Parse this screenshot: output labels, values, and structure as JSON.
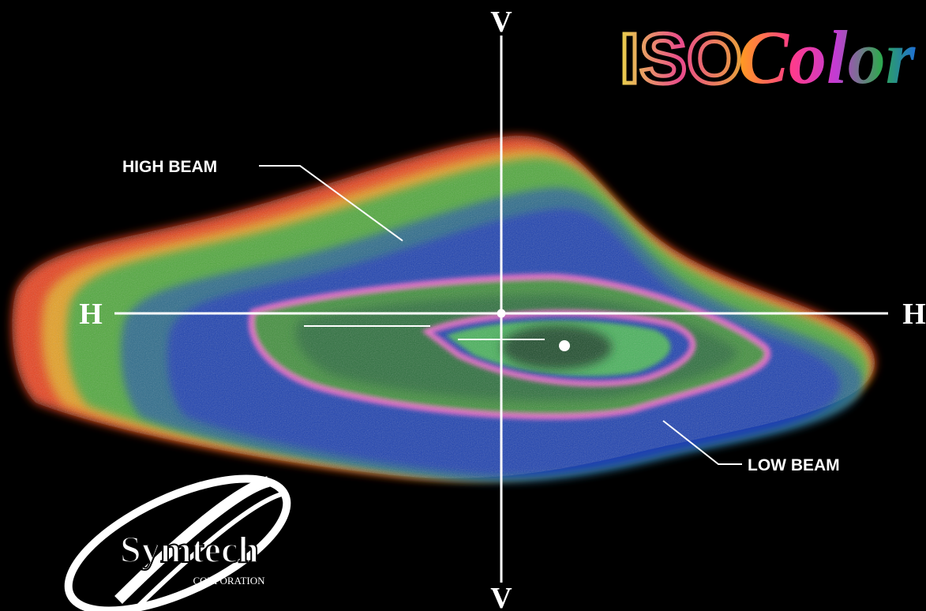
{
  "axes": {
    "vertical_top": "V",
    "vertical_bottom": "V",
    "horizontal_left": "H",
    "horizontal_right": "H"
  },
  "labels": {
    "high_beam": "HIGH BEAM",
    "low_beam": "LOW BEAM"
  },
  "logos": {
    "isocolor": {
      "prefix": "ISO",
      "suffix": "Color"
    },
    "symtech": {
      "name": "Symtech",
      "subtitle": "CORPORATION"
    }
  }
}
